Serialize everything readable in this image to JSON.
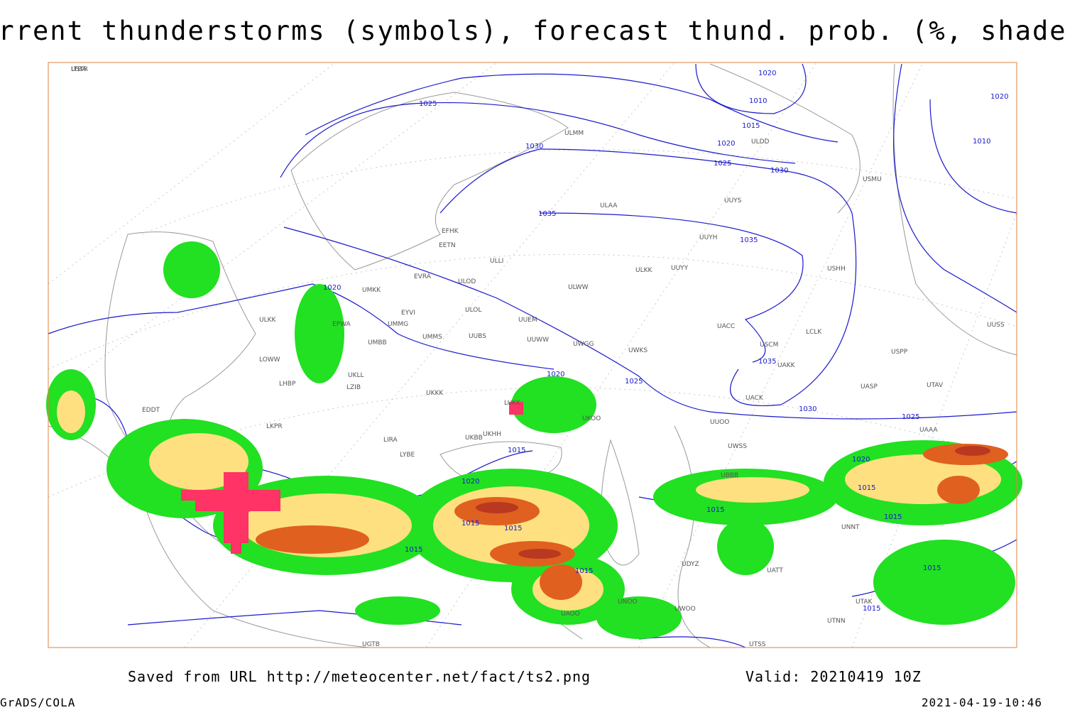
{
  "header": {
    "title": "Current thunderstorms (symbols), forecast thund. prob. (%, shaded)"
  },
  "footer": {
    "source": "Saved from URL http://meteocenter.net/fact/ts2.png",
    "valid": "Valid: 20210419 10Z",
    "software": "GrADS/COLA",
    "timestamp": "2021-04-19-10:46"
  },
  "map": {
    "isobars": [
      1020,
      1025,
      1030,
      1010,
      1015,
      1020,
      1025,
      1030,
      1035,
      1035,
      1025,
      1020,
      1020,
      1015,
      1015,
      1020,
      1015,
      1015,
      1015,
      1015,
      1015,
      1030,
      1035,
      1025,
      1020,
      1015,
      1015,
      1015,
      1010,
      1020
    ],
    "stations": [
      "ULMM",
      "ULDD",
      "USMU",
      "UUYS",
      "ULAA",
      "UUYH",
      "UUYY",
      "ULKK",
      "USHH",
      "EFHK",
      "EETN",
      "ULLI",
      "EVRA",
      "ULOD",
      "ULWW",
      "UMKK",
      "EYVI",
      "ULOL",
      "UUEM",
      "UMMS",
      "UUBS",
      "UUWW",
      "UWGG",
      "UWKS",
      "EPWA",
      "UMMG",
      "UMBB",
      "ULKK",
      "UKLL",
      "UKKK",
      "UKBB",
      "UKHH",
      "LZIB",
      "LHBP",
      "LOWW",
      "EDDT",
      "LKPR",
      "LIRA",
      "LYBE",
      "LUKK",
      "UKOO",
      "UUOO",
      "UWSS",
      "UWOO",
      "UATT",
      "UTAK",
      "UTNN",
      "UTSS",
      "UTAV",
      "UAAA",
      "UASP",
      "UAKK",
      "UACK",
      "UACC",
      "USCM",
      "UUSS",
      "USPP",
      "UNNT",
      "UNOO",
      "UAOO",
      "UBBB",
      "UGTB",
      "UDYZ",
      "LCLK",
      "LTBA",
      "USTR"
    ]
  }
}
